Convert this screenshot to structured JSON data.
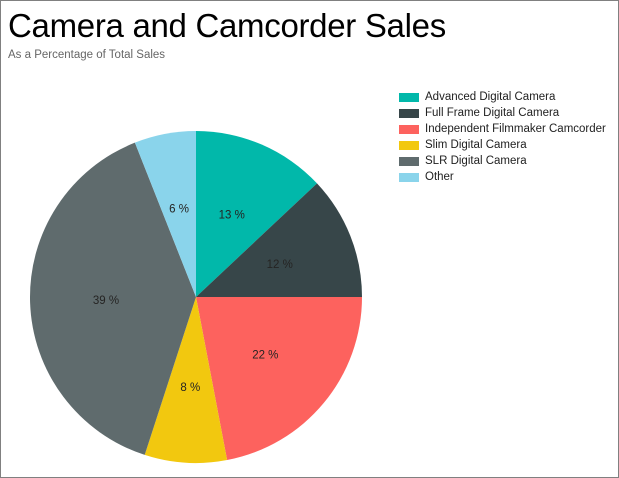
{
  "header": {
    "title": "Camera and Camcorder Sales",
    "subtitle": "As a Percentage of Total Sales"
  },
  "chart_data": {
    "type": "pie",
    "title": "Camera and Camcorder Sales",
    "subtitle": "As a Percentage of Total Sales",
    "categories": [
      "Advanced Digital Camera",
      "Full Frame Digital Camera",
      "Independent Filmmaker Camcorder",
      "Slim Digital Camera",
      "SLR Digital Camera",
      "Other"
    ],
    "values": [
      13,
      12,
      22,
      8,
      39,
      6
    ],
    "labels": [
      "13 %",
      "12 %",
      "22 %",
      "8 %",
      "39 %",
      "6 %"
    ],
    "colors": [
      "#01B8AA",
      "#374649",
      "#FD625E",
      "#F2C80F",
      "#5F6B6D",
      "#8AD4EB"
    ],
    "unit": "%",
    "total": 100,
    "direction": "clockwise",
    "start_angle": "12 o'clock",
    "legend_position": "top-right"
  },
  "theme": {
    "background": "#FFFFFF",
    "border": "#808080",
    "title_color": "#000000",
    "subtitle_color": "#666666",
    "data_label_color": "#252423",
    "legend_text_color": "#212121"
  }
}
